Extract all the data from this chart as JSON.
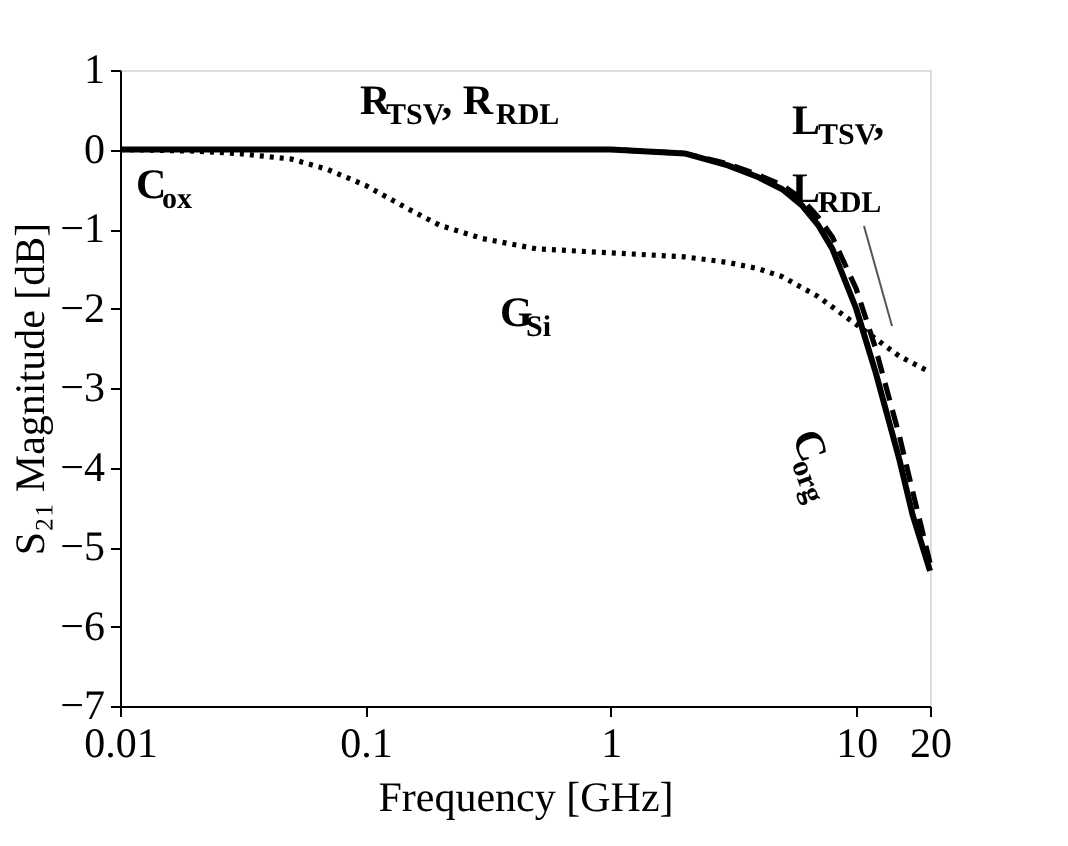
{
  "chart_data": {
    "type": "line",
    "xlabel": "Frequency  [GHz]",
    "ylabel": "S₂₁ Magnitude [dB]",
    "log": "x",
    "xlim": [
      0.01,
      20
    ],
    "xticks": [
      0.01,
      0.1,
      1,
      10,
      20
    ],
    "ylim": [
      -7,
      1
    ],
    "yticks": [
      -7,
      -6,
      -5,
      -4,
      -3,
      -2,
      -1,
      0,
      1
    ],
    "grid": false,
    "marker": "none",
    "series": [
      {
        "color": "#000000",
        "line_style": "solid",
        "x": [
          0.01,
          0.1,
          1,
          2,
          3,
          4,
          5,
          6,
          7,
          8,
          10,
          12,
          15,
          17,
          20
        ],
        "values": [
          0,
          0,
          0,
          -0.05,
          -0.2,
          -0.35,
          -0.5,
          -0.7,
          -0.95,
          -1.25,
          -2.0,
          -2.8,
          -3.9,
          -4.6,
          -5.3
        ]
      },
      {
        "color": "#000000",
        "line_style": "dashed",
        "x": [
          0.01,
          0.1,
          1,
          2,
          3,
          4,
          5,
          6,
          7,
          8,
          10,
          12,
          15,
          17,
          20
        ],
        "values": [
          0,
          0,
          0,
          -0.05,
          -0.18,
          -0.32,
          -0.45,
          -0.62,
          -0.85,
          -1.1,
          -1.75,
          -2.5,
          -3.6,
          -4.3,
          -5.2
        ]
      },
      {
        "color": "#000000",
        "line_style": "dotted",
        "x": [
          0.01,
          0.02,
          0.03,
          0.05,
          0.07,
          0.1,
          0.15,
          0.2,
          0.3,
          0.5,
          1,
          2,
          3,
          4,
          5,
          7,
          10,
          15,
          20
        ],
        "values": [
          0,
          -0.02,
          -0.05,
          -0.12,
          -0.25,
          -0.45,
          -0.75,
          -0.95,
          -1.12,
          -1.25,
          -1.3,
          -1.35,
          -1.42,
          -1.5,
          -1.6,
          -1.85,
          -2.2,
          -2.6,
          -2.8
        ]
      }
    ],
    "annotations": [
      "C$_{ox}$",
      "R$_{TSV}$, R$_{RDL}$",
      "G$_{Si}$",
      "L$_{TSV}$,",
      "L$_{RDL}$",
      "C$_{org}$"
    ]
  }
}
